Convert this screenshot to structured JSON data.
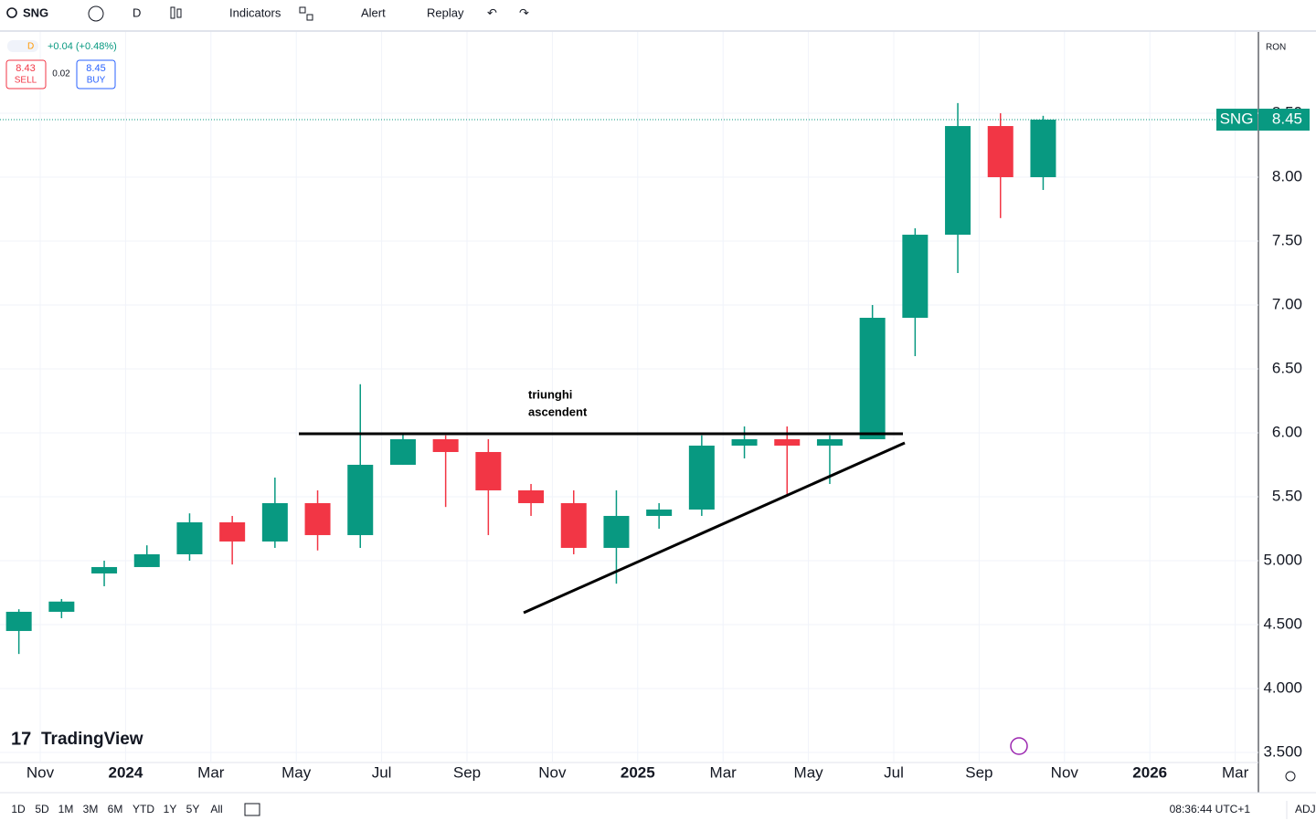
{
  "toolbar": {
    "symbol": "SNG",
    "interval": "D",
    "indicators": "Indicators",
    "alert": "Alert",
    "replay": "Replay"
  },
  "legend": {
    "flag": "D",
    "change": "+0.04 (+0.48%)",
    "sell_price": "8.43",
    "sell": "SELL",
    "spread": "0.02",
    "buy_price": "8.45",
    "buy": "BUY"
  },
  "currency": "RON",
  "chart_data": {
    "type": "candlestick",
    "x": [
      "2023-10",
      "2023-11",
      "2023-12",
      "2024-01",
      "2024-02",
      "2024-03",
      "2024-04",
      "2024-05",
      "2024-06",
      "2024-07",
      "2024-08",
      "2024-09",
      "2024-10",
      "2024-11",
      "2024-12",
      "2025-01",
      "2025-02",
      "2025-03",
      "2025-04",
      "2025-05",
      "2025-06",
      "2025-07",
      "2025-08",
      "2025-09",
      "2025-10"
    ],
    "open": [
      4.45,
      4.6,
      4.9,
      4.95,
      5.05,
      5.3,
      5.15,
      5.45,
      5.2,
      5.75,
      5.95,
      5.85,
      5.55,
      5.45,
      5.1,
      5.35,
      5.4,
      5.9,
      5.95,
      5.9,
      5.95,
      6.9,
      7.55,
      8.4,
      8.0
    ],
    "high": [
      4.62,
      4.7,
      5.0,
      5.12,
      5.37,
      5.35,
      5.65,
      5.55,
      6.38,
      6.0,
      5.98,
      5.95,
      5.6,
      5.55,
      5.55,
      5.45,
      5.98,
      6.05,
      6.05,
      5.98,
      7.0,
      7.6,
      8.58,
      8.5,
      8.48
    ],
    "low": [
      4.27,
      4.55,
      4.8,
      4.95,
      5.0,
      4.97,
      5.1,
      5.08,
      5.1,
      5.75,
      5.42,
      5.2,
      5.35,
      5.05,
      4.82,
      5.25,
      5.35,
      5.8,
      5.5,
      5.6,
      5.95,
      6.6,
      7.25,
      7.68,
      7.9
    ],
    "close": [
      4.6,
      4.68,
      4.95,
      5.05,
      5.3,
      5.15,
      5.45,
      5.2,
      5.75,
      5.95,
      5.85,
      5.55,
      5.45,
      5.1,
      5.35,
      5.4,
      5.9,
      5.95,
      5.9,
      5.95,
      6.9,
      7.55,
      8.4,
      8.0,
      8.45
    ],
    "up_color": "#089981",
    "down_color": "#f23645",
    "last_price": 8.45,
    "last_price_label": "8.45",
    "symbol_tag": "SNG",
    "annotation": [
      "triunghi",
      "ascendent"
    ],
    "ylim": [
      3.421,
      9.136
    ],
    "yticks": [
      {
        "value": 3.5,
        "label": "3.500"
      },
      {
        "value": 4,
        "label": "4.000"
      },
      {
        "value": 4.5,
        "label": "4.500"
      },
      {
        "value": 5,
        "label": "5.000"
      },
      {
        "value": 5.5,
        "label": "5.50"
      },
      {
        "value": 6,
        "label": "6.00"
      },
      {
        "value": 6.5,
        "label": "6.50"
      },
      {
        "value": 7,
        "label": "7.00"
      },
      {
        "value": 7.5,
        "label": "7.50"
      },
      {
        "value": 8,
        "label": "8.00"
      },
      {
        "value": 8.5,
        "label": "8.50"
      }
    ],
    "xticks": [
      {
        "value": "2023-11",
        "label": "Nov"
      },
      {
        "value": "2024-01",
        "label": "2024"
      },
      {
        "value": "2024-03",
        "label": "Mar"
      },
      {
        "value": "2024-05",
        "label": "May"
      },
      {
        "value": "2024-07",
        "label": "Jul"
      },
      {
        "value": "2024-09",
        "label": "Sep"
      },
      {
        "value": "2024-11",
        "label": "Nov"
      },
      {
        "value": "2025-01",
        "label": "2025"
      },
      {
        "value": "2025-03",
        "label": "Mar"
      },
      {
        "value": "2025-05",
        "label": "May"
      },
      {
        "value": "2025-07",
        "label": "Jul"
      },
      {
        "value": "2025-09",
        "label": "Sep"
      },
      {
        "value": "2025-11",
        "label": "Nov"
      },
      {
        "value": "2026-01",
        "label": "2026"
      },
      {
        "value": "2026-03",
        "label": "Mar"
      }
    ],
    "grid": true
  },
  "brand": "TradingView",
  "bottom_bar": {
    "ranges": [
      "1D",
      "5D",
      "1M",
      "3M",
      "6M",
      "YTD",
      "1Y",
      "5Y",
      "All"
    ],
    "clock": "08:36:44 UTC+1",
    "adj": "ADJ"
  }
}
